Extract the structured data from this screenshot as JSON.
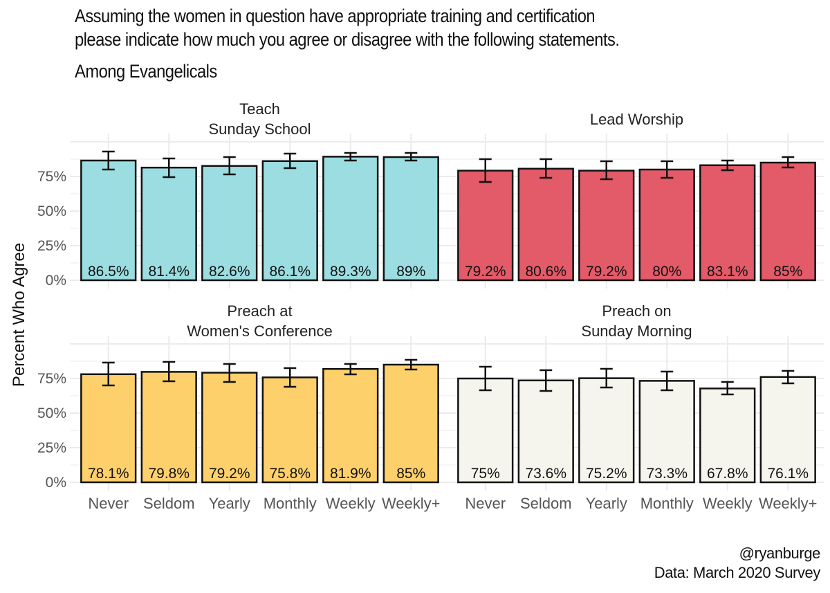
{
  "header": {
    "title_line1": "Assuming the women in question have appropriate training and certification",
    "title_line2": "please indicate how much you agree or disagree with the following statements.",
    "subtitle": "Among Evangelicals"
  },
  "footer": {
    "credit": "@ryanburge",
    "source": "Data: March 2020 Survey"
  },
  "chart_data": {
    "type": "bar",
    "layout": "facet 2x2",
    "title": "Assuming the women in question have appropriate training and certification please indicate how much you agree or disagree with the following statements.",
    "subtitle": "Among Evangelicals",
    "xlabel": "",
    "ylabel": "Percent Who Agree",
    "ylim": [
      0,
      100
    ],
    "yticks": [
      0,
      25,
      50,
      75
    ],
    "ytick_labels": [
      "0%",
      "25%",
      "50%",
      "75%"
    ],
    "grid": true,
    "categories": [
      "Never",
      "Seldom",
      "Yearly",
      "Monthly",
      "Weekly",
      "Weekly+"
    ],
    "panels": [
      {
        "name": "Teach\nSunday School",
        "strip_lines": [
          "Teach",
          "Sunday School"
        ],
        "color": "#9bdde0",
        "values": [
          86.5,
          81.4,
          82.6,
          86.1,
          89.3,
          89.0
        ],
        "labels": [
          "86.5%",
          "81.4%",
          "82.6%",
          "86.1%",
          "89.3%",
          "89%"
        ],
        "ci_low": [
          80.0,
          74.5,
          76.5,
          81.0,
          86.5,
          86.5
        ],
        "ci_high": [
          93.0,
          88.0,
          89.0,
          91.5,
          92.0,
          92.0
        ]
      },
      {
        "name": "Lead Worship",
        "strip_lines": [
          "Lead Worship"
        ],
        "color": "#e35a68",
        "values": [
          79.2,
          80.6,
          79.2,
          80.0,
          83.1,
          85.0
        ],
        "labels": [
          "79.2%",
          "80.6%",
          "79.2%",
          "80%",
          "83.1%",
          "85%"
        ],
        "ci_low": [
          71.0,
          74.0,
          73.0,
          74.0,
          79.5,
          81.5
        ],
        "ci_high": [
          87.5,
          87.5,
          86.0,
          86.0,
          86.5,
          89.0
        ]
      },
      {
        "name": "Preach at\nWomen's Conference",
        "strip_lines": [
          "Preach at",
          "Women's Conference"
        ],
        "color": "#fdd06c",
        "values": [
          78.1,
          79.8,
          79.2,
          75.8,
          81.9,
          85.0
        ],
        "labels": [
          "78.1%",
          "79.8%",
          "79.2%",
          "75.8%",
          "81.9%",
          "85%"
        ],
        "ci_low": [
          70.0,
          73.0,
          72.5,
          69.0,
          78.0,
          81.5
        ],
        "ci_high": [
          86.5,
          87.0,
          85.5,
          82.5,
          85.5,
          88.5
        ]
      },
      {
        "name": "Preach on\nSunday Morning",
        "strip_lines": [
          "Preach on",
          "Sunday Morning"
        ],
        "color": "#f5f5ee",
        "values": [
          75.0,
          73.6,
          75.2,
          73.3,
          67.8,
          76.1
        ],
        "labels": [
          "75%",
          "73.6%",
          "75.2%",
          "73.3%",
          "67.8%",
          "76.1%"
        ],
        "ci_low": [
          66.5,
          66.0,
          68.5,
          66.5,
          63.5,
          71.5
        ],
        "ci_high": [
          83.5,
          81.0,
          82.0,
          80.0,
          72.5,
          80.5
        ]
      }
    ]
  }
}
